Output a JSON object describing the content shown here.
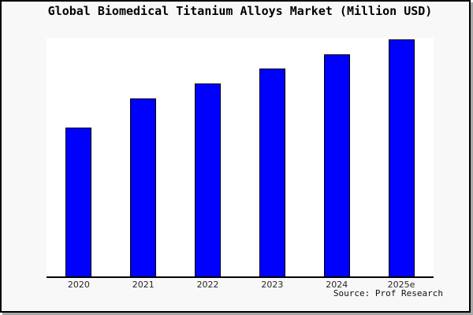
{
  "figure": {
    "title": "Global Biomedical Titanium Alloys Market (Million USD)",
    "source_note": "Source: Prof Research"
  },
  "chart_data": {
    "type": "bar",
    "title": "Global Biomedical Titanium Alloys Market (Million USD)",
    "categories": [
      "2020",
      "2021",
      "2022",
      "2023",
      "2024",
      "2025e"
    ],
    "values": [
      62.8,
      75.1,
      81.4,
      87.7,
      93.7,
      100
    ],
    "value_note": "no y-axis scale shown; values are relative bar heights with 2025e = 100",
    "xlabel": "",
    "ylabel": "",
    "ylim": [
      0,
      100.7
    ],
    "grid": false,
    "legend": null,
    "annotations": [
      "Source: Prof Research"
    ]
  },
  "colors": {
    "bar_fill": "#0000ff",
    "bar_border": "#000000",
    "figure_background": "#f8f8f8",
    "plot_background": "#ffffff",
    "frame_border": "#000000",
    "shadow": "#a8a8a8",
    "text": "#000000"
  }
}
